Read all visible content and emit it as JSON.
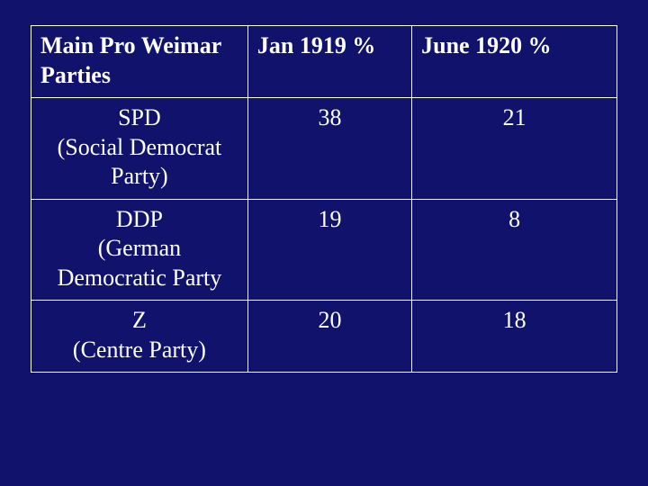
{
  "slide": {
    "background_color": "#10126b",
    "text_color": "#ffffff",
    "border_color": "#ffffff",
    "font_family": "Times New Roman",
    "header_fontsize": 26,
    "cell_fontsize": 26
  },
  "table": {
    "type": "table",
    "column_widths_pct": [
      37,
      28,
      35
    ],
    "columns": [
      "Main Pro Weimar Parties",
      "Jan 1919 %",
      "June 1920 %"
    ],
    "rows": [
      {
        "party_name": "SPD",
        "party_detail": "(Social Democrat Party)",
        "jan1919": "38",
        "june1920": "21"
      },
      {
        "party_name": "DDP",
        "party_detail": "(German Democratic Party",
        "jan1919": "19",
        "june1920": "8"
      },
      {
        "party_name": "Z",
        "party_detail": "(Centre Party)",
        "jan1919": "20",
        "june1920": "18"
      }
    ]
  }
}
